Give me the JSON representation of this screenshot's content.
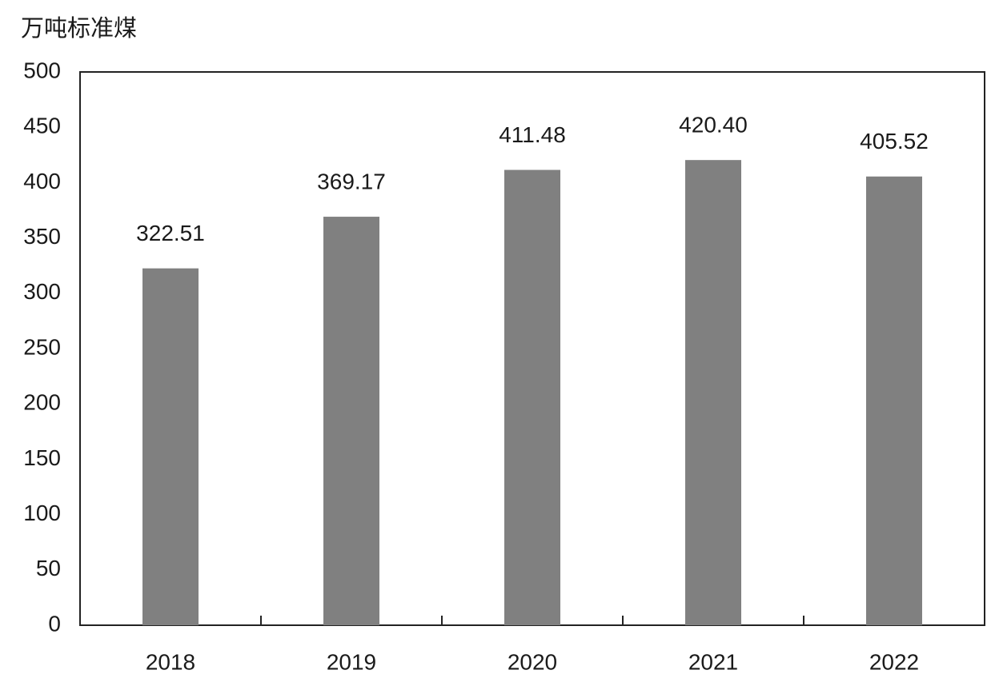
{
  "chart_data": {
    "type": "bar",
    "y_axis_label": "万吨标准煤",
    "categories": [
      "2018",
      "2019",
      "2020",
      "2021",
      "2022"
    ],
    "values": [
      322.51,
      369.17,
      411.48,
      420.4,
      405.52
    ],
    "value_labels": [
      "322.51",
      "369.17",
      "411.48",
      "420.40",
      "405.52"
    ],
    "color": "#808080",
    "ylim": [
      0,
      500
    ],
    "yticks": [
      0,
      50,
      100,
      150,
      200,
      250,
      300,
      350,
      400,
      450,
      500
    ],
    "grid": false
  }
}
